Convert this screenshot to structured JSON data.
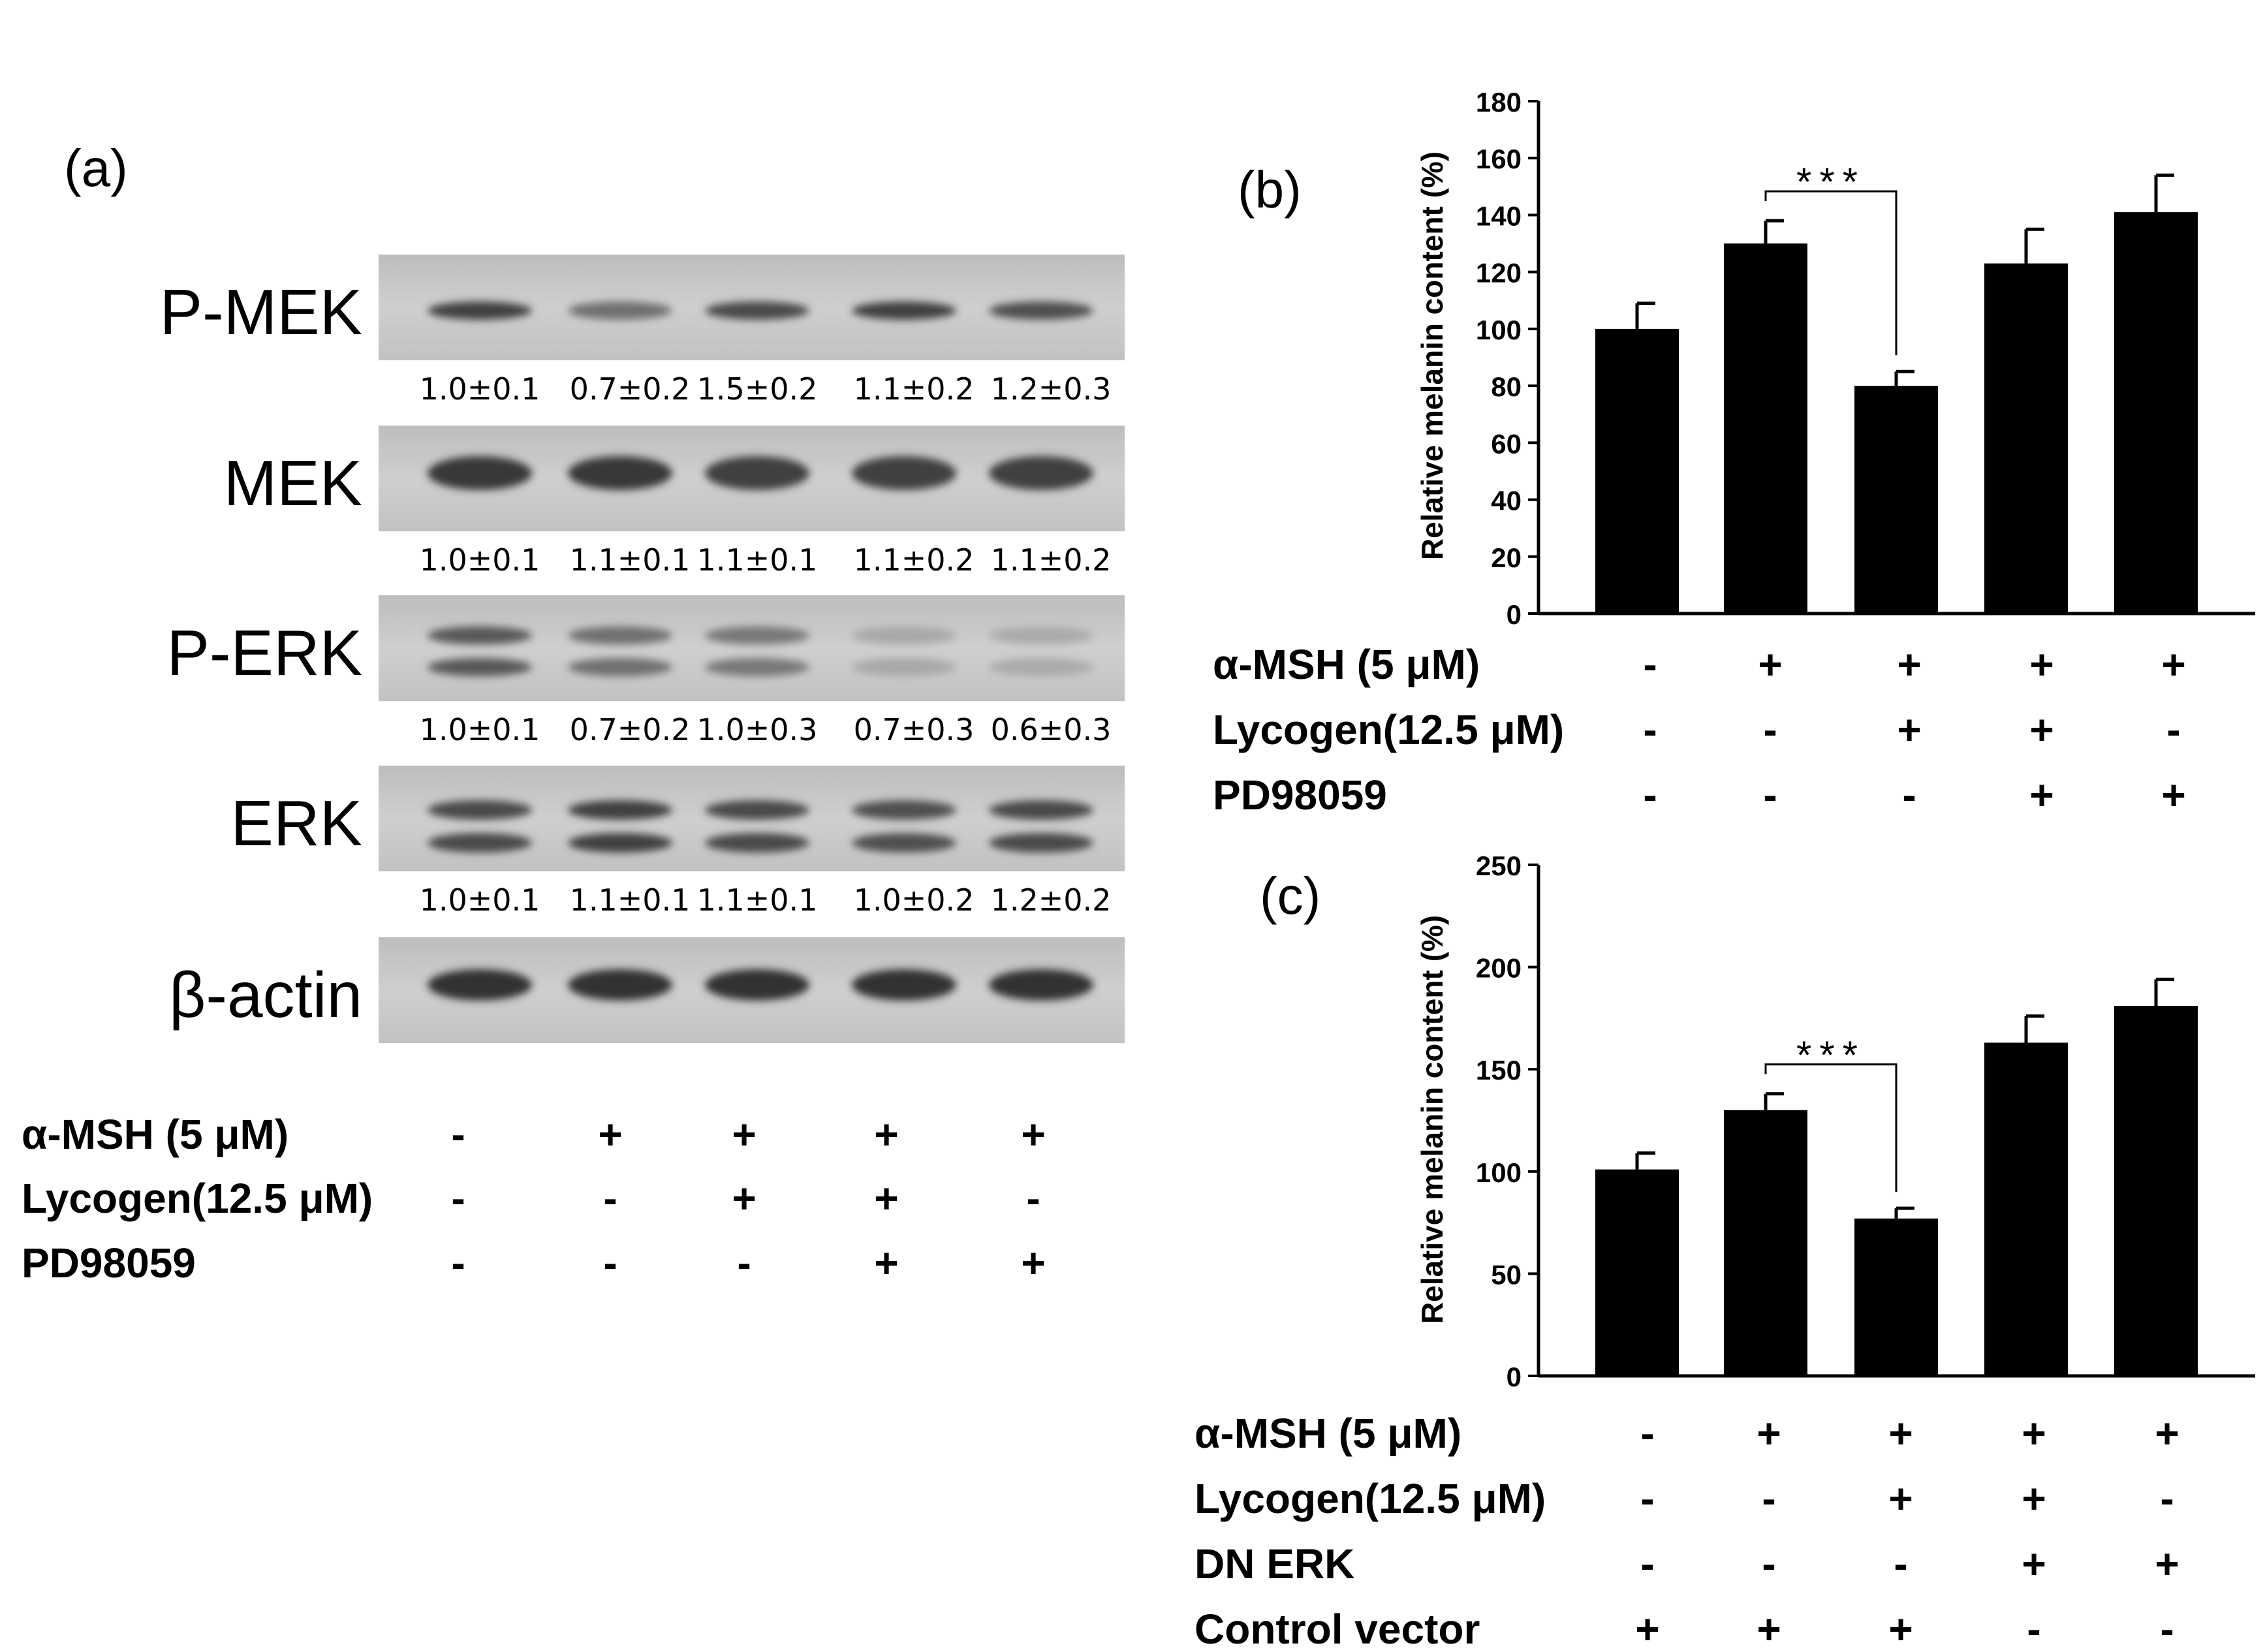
{
  "panel_a": {
    "label": "(a)",
    "lanes": 5,
    "blots": [
      {
        "name": "P-MEK",
        "quant": [
          "1.0±0.1",
          "0.7±0.2",
          "1.5±0.2",
          "1.1±0.2",
          "1.2±0.3"
        ]
      },
      {
        "name": "MEK",
        "quant": [
          "1.0±0.1",
          "1.1±0.1",
          "1.1±0.1",
          "1.1±0.2",
          "1.1±0.2"
        ]
      },
      {
        "name": "P-ERK",
        "quant": [
          "1.0±0.1",
          "0.7±0.2",
          "1.0±0.3",
          "0.7±0.3",
          "0.6±0.3"
        ]
      },
      {
        "name": "ERK",
        "quant": [
          "1.0±0.1",
          "1.1±0.1",
          "1.1±0.1",
          "1.0±0.2",
          "1.2±0.2"
        ]
      },
      {
        "name": "β-actin",
        "quant": []
      }
    ],
    "treatments": [
      {
        "label": "α-MSH (5 μM)",
        "signs": [
          "-",
          "+",
          "+",
          "+",
          "+"
        ]
      },
      {
        "label": "Lycogen(12.5 μM)",
        "signs": [
          "-",
          "-",
          "+",
          "+",
          "-"
        ]
      },
      {
        "label": "PD98059",
        "signs": [
          "-",
          "-",
          "-",
          "+",
          "+"
        ]
      }
    ]
  },
  "chart_data": [
    {
      "panel": "(b)",
      "type": "bar",
      "ylabel": "Relative melanin content (%)",
      "ylim": [
        0,
        180
      ],
      "yticks": [
        0,
        20,
        40,
        60,
        80,
        100,
        120,
        140,
        160,
        180
      ],
      "values": [
        100,
        130,
        80,
        123,
        141
      ],
      "errors": [
        9,
        8,
        5,
        12,
        13
      ],
      "significance": {
        "from": 1,
        "to": 2,
        "label": "***"
      },
      "treatments": [
        {
          "label": "α-MSH (5 μM)",
          "signs": [
            "-",
            "+",
            "+",
            "+",
            "+"
          ]
        },
        {
          "label": "Lycogen(12.5 μM)",
          "signs": [
            "-",
            "-",
            "+",
            "+",
            "-"
          ]
        },
        {
          "label": "PD98059",
          "signs": [
            "-",
            "-",
            "-",
            "+",
            "+"
          ]
        }
      ]
    },
    {
      "panel": "(c)",
      "type": "bar",
      "ylabel": "Relative melanin content (%)",
      "ylim": [
        0,
        250
      ],
      "yticks": [
        0,
        50,
        100,
        150,
        200,
        250
      ],
      "values": [
        101,
        130,
        77,
        163,
        181
      ],
      "errors": [
        8,
        8,
        5,
        13,
        13
      ],
      "significance": {
        "from": 1,
        "to": 2,
        "label": "***"
      },
      "treatments": [
        {
          "label": "α-MSH (5 μM)",
          "signs": [
            "-",
            "+",
            "+",
            "+",
            "+"
          ]
        },
        {
          "label": "Lycogen(12.5 μM)",
          "signs": [
            "-",
            "-",
            "+",
            "+",
            "-"
          ]
        },
        {
          "label": "DN ERK",
          "signs": [
            "-",
            "-",
            "-",
            "+",
            "+"
          ]
        },
        {
          "label": "Control vector",
          "signs": [
            "+",
            "+",
            "+",
            "-",
            "-"
          ]
        }
      ]
    }
  ],
  "colors": {
    "bar": "#000000",
    "axis": "#000000",
    "blot_bg": "#c9c9c9",
    "band": "#3a3a3a"
  }
}
